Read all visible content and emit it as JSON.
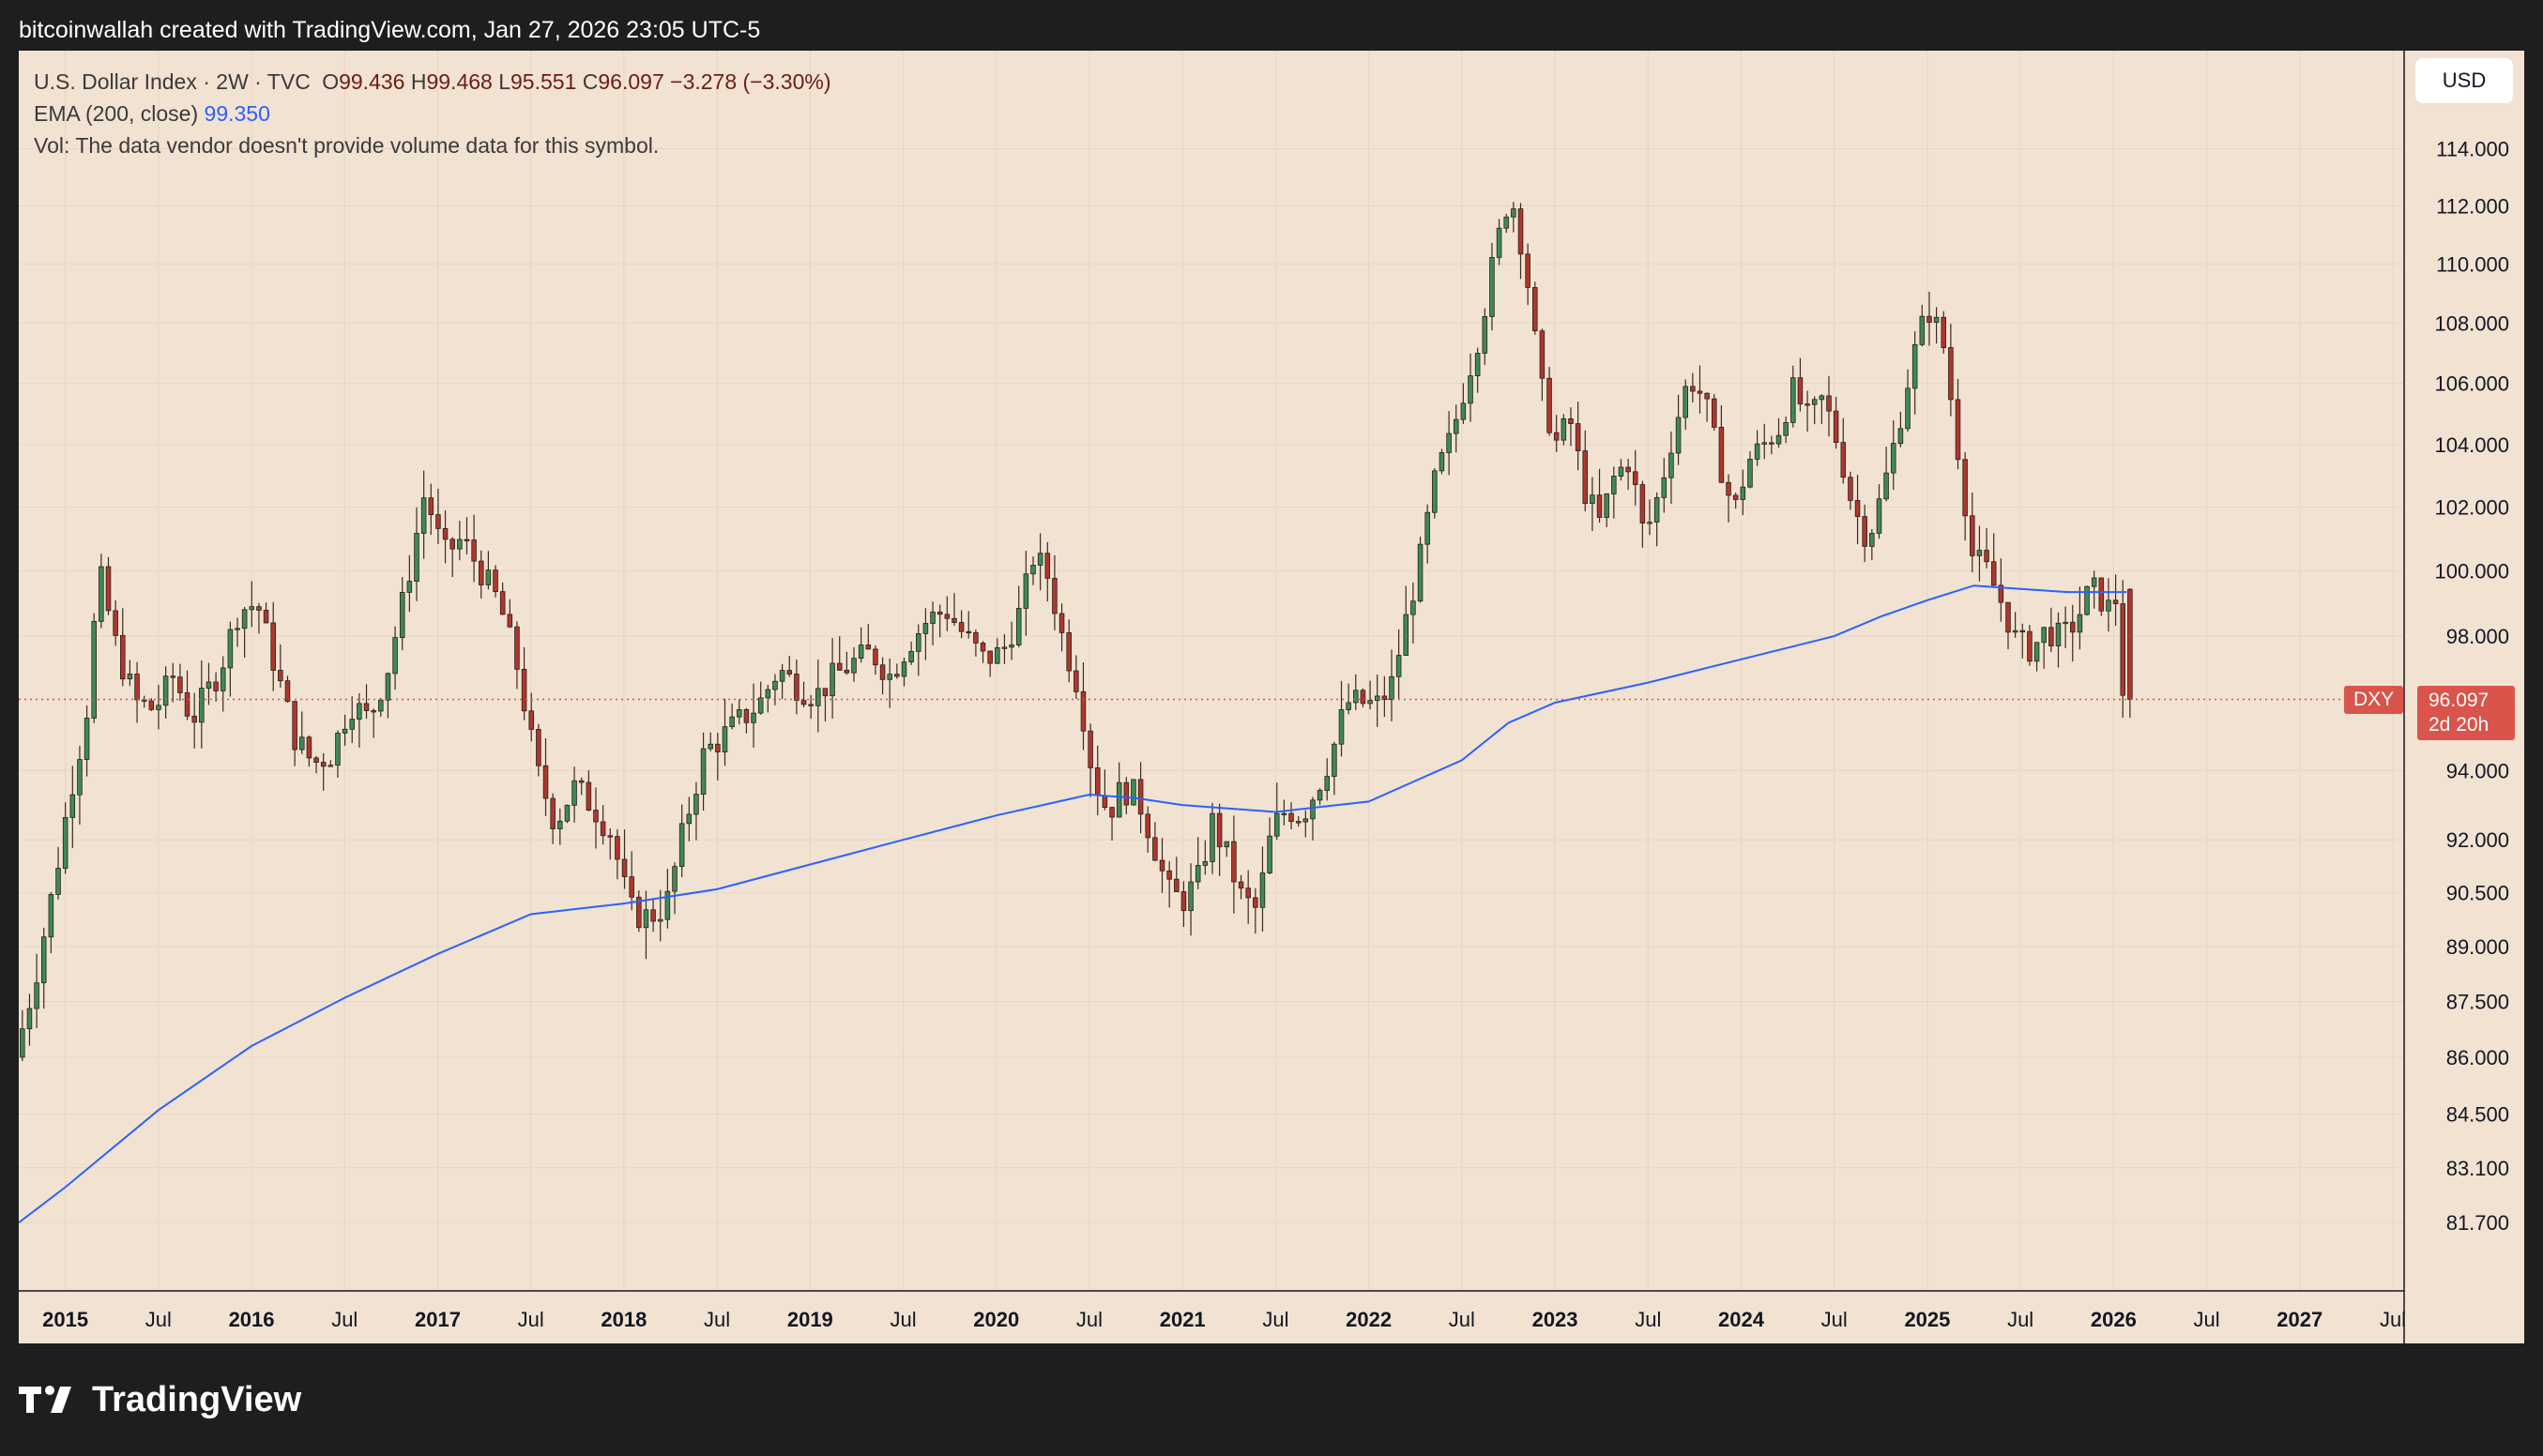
{
  "caption": "bitcoinwallah created with TradingView.com, Jan 27, 2026 23:05 UTC-5",
  "legend": {
    "symbol_line": "U.S. Dollar Index · 2W · TVC",
    "open_label": "O",
    "open": "99.436",
    "high_label": "H",
    "high": "99.468",
    "low_label": "L",
    "low": "95.551",
    "close_label": "C",
    "close": "96.097",
    "change": "−3.278 (−3.30%)",
    "ema_label": "EMA (200, close)",
    "ema_value": "99.350",
    "vol_note": "Vol: The data vendor doesn't provide volume data for this symbol."
  },
  "currency": "USD",
  "symbol_tag": "DXY",
  "last_price": "96.097",
  "countdown": "2d 20h",
  "brand": "TradingView",
  "colors": {
    "background": "#f2e2d2",
    "frame": "#1e1e1e",
    "up": "#3e8a57",
    "down": "#b0362c",
    "ema": "#2962ff",
    "last_price": "#d9544a"
  },
  "chart_data": {
    "type": "candlestick",
    "title": "U.S. Dollar Index · 2W · TVC",
    "ylim": [
      80.5,
      116.5
    ],
    "y_scale": "log",
    "xlim": [
      2014.75,
      2027.5
    ],
    "y_ticks": [
      "114.000",
      "112.000",
      "110.000",
      "108.000",
      "106.000",
      "104.000",
      "102.000",
      "100.000",
      "98.000",
      "94.000",
      "92.000",
      "90.500",
      "89.000",
      "87.500",
      "86.000",
      "84.500",
      "83.100",
      "81.700"
    ],
    "x_ticks": [
      {
        "label": "2015",
        "t": 2015.0,
        "bold": true
      },
      {
        "label": "Jul",
        "t": 2015.5,
        "bold": false
      },
      {
        "label": "2016",
        "t": 2016.0,
        "bold": true
      },
      {
        "label": "Jul",
        "t": 2016.5,
        "bold": false
      },
      {
        "label": "2017",
        "t": 2017.0,
        "bold": true
      },
      {
        "label": "Jul",
        "t": 2017.5,
        "bold": false
      },
      {
        "label": "2018",
        "t": 2018.0,
        "bold": true
      },
      {
        "label": "Jul",
        "t": 2018.5,
        "bold": false
      },
      {
        "label": "2019",
        "t": 2019.0,
        "bold": true
      },
      {
        "label": "Jul",
        "t": 2019.5,
        "bold": false
      },
      {
        "label": "2020",
        "t": 2020.0,
        "bold": true
      },
      {
        "label": "Jul",
        "t": 2020.5,
        "bold": false
      },
      {
        "label": "2021",
        "t": 2021.0,
        "bold": true
      },
      {
        "label": "Jul",
        "t": 2021.5,
        "bold": false
      },
      {
        "label": "2022",
        "t": 2022.0,
        "bold": true
      },
      {
        "label": "Jul",
        "t": 2022.5,
        "bold": false
      },
      {
        "label": "2023",
        "t": 2023.0,
        "bold": true
      },
      {
        "label": "Jul",
        "t": 2023.5,
        "bold": false
      },
      {
        "label": "2024",
        "t": 2024.0,
        "bold": true
      },
      {
        "label": "Jul",
        "t": 2024.5,
        "bold": false
      },
      {
        "label": "2025",
        "t": 2025.0,
        "bold": true
      },
      {
        "label": "Jul",
        "t": 2025.5,
        "bold": false
      },
      {
        "label": "2026",
        "t": 2026.0,
        "bold": true
      },
      {
        "label": "Jul",
        "t": 2026.5,
        "bold": false
      },
      {
        "label": "2027",
        "t": 2027.0,
        "bold": true
      },
      {
        "label": "Jul",
        "t": 2027.5,
        "bold": false
      }
    ],
    "price_path": [
      [
        2014.75,
        86.0
      ],
      [
        2014.85,
        88.0
      ],
      [
        2014.95,
        90.5
      ],
      [
        2015.05,
        93.5
      ],
      [
        2015.13,
        95.5
      ],
      [
        2015.2,
        100.0
      ],
      [
        2015.3,
        97.5
      ],
      [
        2015.4,
        96.0
      ],
      [
        2015.5,
        95.8
      ],
      [
        2015.6,
        96.8
      ],
      [
        2015.7,
        95.5
      ],
      [
        2015.85,
        97.0
      ],
      [
        2015.95,
        98.8
      ],
      [
        2016.05,
        99.0
      ],
      [
        2016.15,
        97.0
      ],
      [
        2016.25,
        95.0
      ],
      [
        2016.35,
        94.2
      ],
      [
        2016.45,
        94.5
      ],
      [
        2016.55,
        96.0
      ],
      [
        2016.65,
        95.5
      ],
      [
        2016.75,
        97.0
      ],
      [
        2016.85,
        99.5
      ],
      [
        2016.95,
        102.5
      ],
      [
        2017.05,
        100.5
      ],
      [
        2017.15,
        101.0
      ],
      [
        2017.25,
        100.0
      ],
      [
        2017.35,
        99.0
      ],
      [
        2017.45,
        97.0
      ],
      [
        2017.55,
        94.0
      ],
      [
        2017.65,
        92.5
      ],
      [
        2017.75,
        93.5
      ],
      [
        2017.85,
        93.0
      ],
      [
        2017.95,
        92.2
      ],
      [
        2018.05,
        90.0
      ],
      [
        2018.15,
        89.8
      ],
      [
        2018.25,
        90.2
      ],
      [
        2018.35,
        92.5
      ],
      [
        2018.45,
        94.5
      ],
      [
        2018.55,
        95.0
      ],
      [
        2018.65,
        95.5
      ],
      [
        2018.75,
        96.0
      ],
      [
        2018.85,
        97.0
      ],
      [
        2018.95,
        96.5
      ],
      [
        2019.05,
        96.2
      ],
      [
        2019.15,
        96.8
      ],
      [
        2019.25,
        97.2
      ],
      [
        2019.35,
        97.5
      ],
      [
        2019.45,
        96.8
      ],
      [
        2019.55,
        97.8
      ],
      [
        2019.65,
        98.5
      ],
      [
        2019.75,
        98.8
      ],
      [
        2019.85,
        98.0
      ],
      [
        2019.95,
        97.3
      ],
      [
        2020.05,
        97.5
      ],
      [
        2020.15,
        98.8
      ],
      [
        2020.22,
        100.5
      ],
      [
        2020.3,
        99.8
      ],
      [
        2020.38,
        97.8
      ],
      [
        2020.46,
        96.5
      ],
      [
        2020.54,
        93.8
      ],
      [
        2020.62,
        92.8
      ],
      [
        2020.7,
        93.5
      ],
      [
        2020.78,
        93.2
      ],
      [
        2020.86,
        92.0
      ],
      [
        2020.94,
        90.5
      ],
      [
        2021.02,
        90.3
      ],
      [
        2021.1,
        90.8
      ],
      [
        2021.18,
        92.5
      ],
      [
        2021.26,
        91.5
      ],
      [
        2021.34,
        90.3
      ],
      [
        2021.42,
        90.0
      ],
      [
        2021.5,
        92.3
      ],
      [
        2021.58,
        92.9
      ],
      [
        2021.66,
        92.7
      ],
      [
        2021.74,
        93.5
      ],
      [
        2021.82,
        94.5
      ],
      [
        2021.9,
        96.0
      ],
      [
        2021.98,
        96.0
      ],
      [
        2022.06,
        95.9
      ],
      [
        2022.14,
        96.5
      ],
      [
        2022.22,
        98.5
      ],
      [
        2022.3,
        100.5
      ],
      [
        2022.38,
        103.0
      ],
      [
        2022.46,
        104.2
      ],
      [
        2022.54,
        106.0
      ],
      [
        2022.62,
        107.8
      ],
      [
        2022.7,
        110.5
      ],
      [
        2022.78,
        112.5
      ],
      [
        2022.86,
        110.0
      ],
      [
        2022.94,
        106.0
      ],
      [
        2023.02,
        104.0
      ],
      [
        2023.1,
        104.8
      ],
      [
        2023.18,
        102.5
      ],
      [
        2023.26,
        101.5
      ],
      [
        2023.34,
        103.0
      ],
      [
        2023.42,
        103.5
      ],
      [
        2023.5,
        101.0
      ],
      [
        2023.58,
        102.5
      ],
      [
        2023.66,
        104.5
      ],
      [
        2023.74,
        106.2
      ],
      [
        2023.82,
        105.5
      ],
      [
        2023.9,
        103.5
      ],
      [
        2023.98,
        101.8
      ],
      [
        2024.06,
        103.5
      ],
      [
        2024.14,
        104.0
      ],
      [
        2024.22,
        104.5
      ],
      [
        2024.3,
        105.8
      ],
      [
        2024.38,
        104.8
      ],
      [
        2024.46,
        105.5
      ],
      [
        2024.54,
        104.0
      ],
      [
        2024.62,
        102.0
      ],
      [
        2024.7,
        101.0
      ],
      [
        2024.78,
        102.5
      ],
      [
        2024.86,
        104.5
      ],
      [
        2024.94,
        106.8
      ],
      [
        2025.02,
        108.5
      ],
      [
        2025.1,
        107.5
      ],
      [
        2025.18,
        104.0
      ],
      [
        2025.26,
        100.5
      ],
      [
        2025.34,
        100.0
      ],
      [
        2025.42,
        99.0
      ],
      [
        2025.5,
        97.8
      ],
      [
        2025.58,
        97.6
      ],
      [
        2025.66,
        98.2
      ],
      [
        2025.74,
        97.9
      ],
      [
        2025.82,
        98.5
      ],
      [
        2025.9,
        99.5
      ],
      [
        2026.0,
        98.8
      ],
      [
        2026.06,
        99.44
      ],
      [
        2026.07,
        96.1
      ]
    ],
    "candle_step": 0.0385,
    "last_candle": {
      "open": 99.436,
      "high": 99.468,
      "low": 95.551,
      "close": 96.097
    },
    "ema_200": [
      [
        2014.75,
        81.7
      ],
      [
        2015.0,
        82.6
      ],
      [
        2015.5,
        84.6
      ],
      [
        2016.0,
        86.3
      ],
      [
        2016.5,
        87.6
      ],
      [
        2017.0,
        88.8
      ],
      [
        2017.5,
        89.9
      ],
      [
        2018.0,
        90.2
      ],
      [
        2018.5,
        90.6
      ],
      [
        2019.0,
        91.3
      ],
      [
        2019.5,
        92.0
      ],
      [
        2020.0,
        92.7
      ],
      [
        2020.5,
        93.3
      ],
      [
        2020.75,
        93.2
      ],
      [
        2021.0,
        93.0
      ],
      [
        2021.5,
        92.8
      ],
      [
        2022.0,
        93.1
      ],
      [
        2022.5,
        94.3
      ],
      [
        2022.75,
        95.4
      ],
      [
        2023.0,
        96.0
      ],
      [
        2023.5,
        96.6
      ],
      [
        2024.0,
        97.3
      ],
      [
        2024.5,
        98.0
      ],
      [
        2024.75,
        98.6
      ],
      [
        2025.0,
        99.1
      ],
      [
        2025.25,
        99.55
      ],
      [
        2025.5,
        99.45
      ],
      [
        2025.75,
        99.35
      ],
      [
        2026.07,
        99.35
      ]
    ],
    "last_value": 96.097,
    "grid": true,
    "legend_position": "top-left"
  }
}
